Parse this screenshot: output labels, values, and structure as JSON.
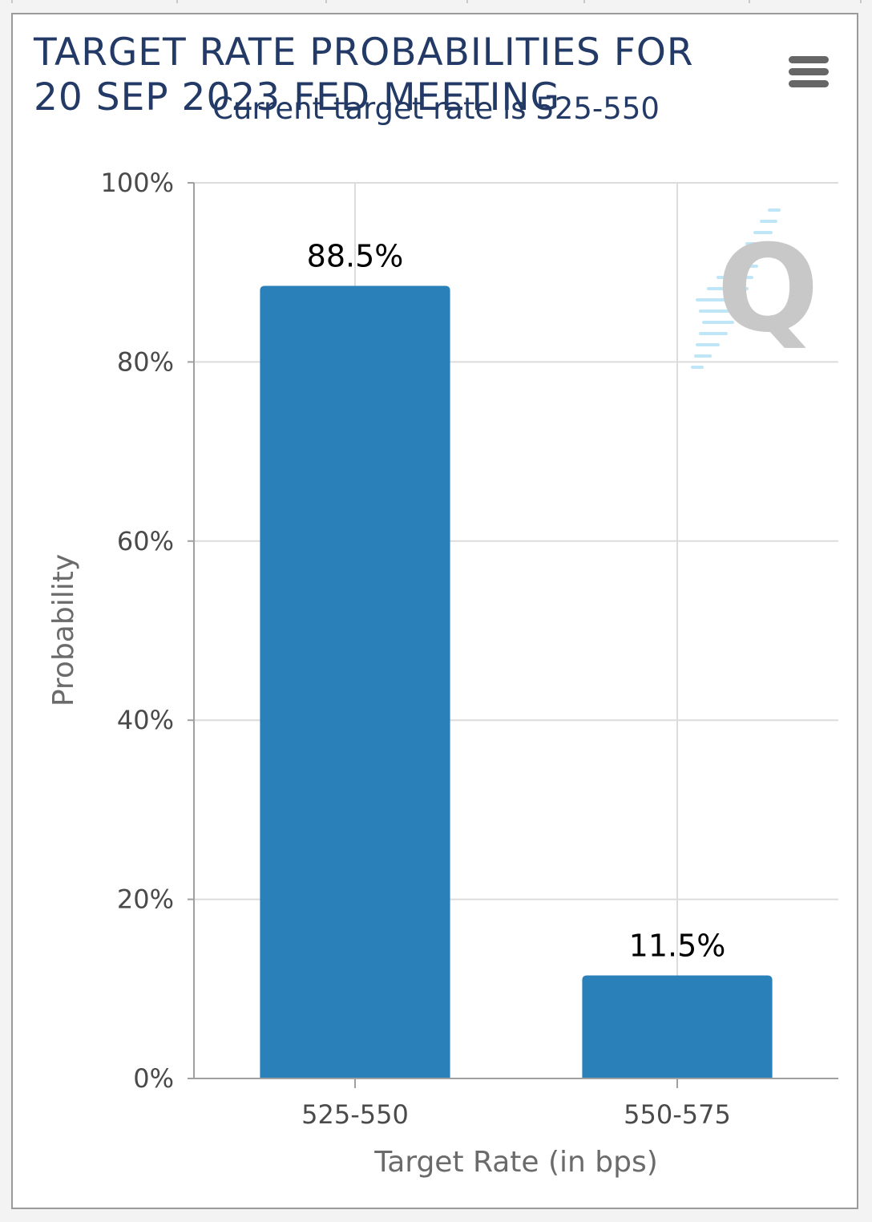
{
  "menu": {
    "icon": "hamburger-menu-icon"
  },
  "chart_data": {
    "type": "bar",
    "title": "TARGET RATE PROBABILITIES FOR 20 SEP 2023 FED MEETING",
    "subtitle": "Current target rate is 525-550",
    "xlabel": "Target Rate (in bps)",
    "ylabel": "Probability",
    "categories": [
      "525-550",
      "550-575"
    ],
    "values": [
      88.5,
      11.5
    ],
    "data_labels": [
      "88.5%",
      "11.5%"
    ],
    "ylim": [
      0,
      100
    ],
    "yticks": [
      0,
      20,
      40,
      60,
      80,
      100
    ],
    "ytick_labels": [
      "0%",
      "20%",
      "40%",
      "60%",
      "80%",
      "100%"
    ],
    "grid": true,
    "legend": "none",
    "bar_color": "#2a80b9",
    "watermark": "Q"
  }
}
